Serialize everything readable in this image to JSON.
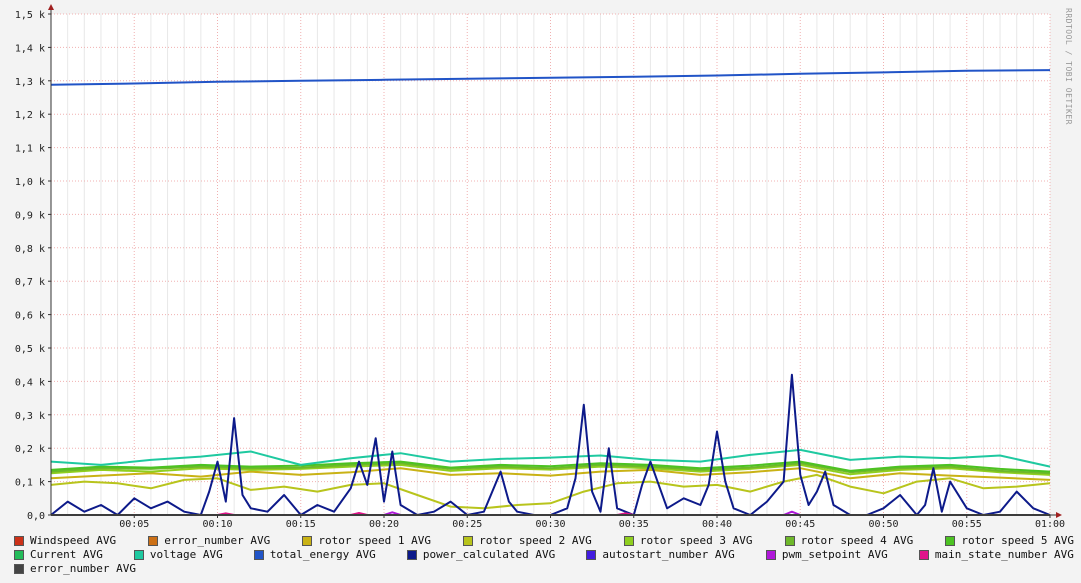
{
  "watermark": "RRDTOOL / TOBI OETIKER",
  "chart_data": {
    "type": "line",
    "title": "",
    "xlabel": "",
    "ylabel": "",
    "ylim": [
      0,
      1500
    ],
    "y_ticks": [
      0,
      100,
      200,
      300,
      400,
      500,
      600,
      700,
      800,
      900,
      1000,
      1100,
      1200,
      1300,
      1400,
      1500
    ],
    "y_tick_labels": [
      "0,0",
      "0,1 k",
      "0,2 k",
      "0,3 k",
      "0,4 k",
      "0,5 k",
      "0,6 k",
      "0,7 k",
      "0,8 k",
      "0,9 k",
      "1,0 k",
      "1,1 k",
      "1,2 k",
      "1,3 k",
      "1,4 k",
      "1,5 k"
    ],
    "xlim": [
      0,
      60
    ],
    "x_ticks": [
      5,
      10,
      15,
      20,
      25,
      30,
      35,
      40,
      45,
      50,
      55,
      60
    ],
    "x_tick_labels": [
      "00:05",
      "00:10",
      "00:15",
      "00:20",
      "00:25",
      "00:30",
      "00:35",
      "00:40",
      "00:45",
      "00:50",
      "00:55",
      "01:00"
    ],
    "grid": true,
    "legend_position": "bottom",
    "series": [
      {
        "name": "Windspeed AVG",
        "color": "#cc3118",
        "x": [
          0,
          60
        ],
        "y": [
          0,
          0
        ]
      },
      {
        "name": "error_number AVG",
        "color": "#cc7016",
        "x": [
          0,
          10,
          20,
          30,
          40,
          50,
          60
        ],
        "y": [
          0,
          0,
          0,
          0,
          0,
          0,
          0
        ]
      },
      {
        "name": "rotor speed 1 AVG",
        "color": "#c9b215",
        "x": [
          0,
          3,
          6,
          9,
          12,
          15,
          18,
          21,
          24,
          27,
          30,
          33,
          36,
          39,
          42,
          45,
          48,
          51,
          54,
          57,
          60
        ],
        "y": [
          110,
          118,
          125,
          115,
          130,
          120,
          128,
          140,
          120,
          125,
          118,
          130,
          135,
          120,
          128,
          140,
          110,
          125,
          118,
          112,
          105
        ]
      },
      {
        "name": "rotor speed 2 AVG",
        "color": "#b8c41c",
        "x": [
          0,
          2,
          4,
          6,
          8,
          10,
          12,
          14,
          16,
          18,
          20,
          22,
          24,
          26,
          28,
          30,
          32,
          34,
          36,
          38,
          40,
          42,
          44,
          46,
          48,
          50,
          52,
          54,
          56,
          58,
          60
        ],
        "y": [
          90,
          100,
          95,
          80,
          105,
          110,
          75,
          85,
          70,
          90,
          95,
          60,
          25,
          20,
          30,
          35,
          70,
          95,
          100,
          85,
          90,
          70,
          100,
          120,
          85,
          65,
          100,
          110,
          80,
          85,
          95
        ]
      },
      {
        "name": "rotor speed 3 AVG",
        "color": "#8fcf1f",
        "x": [
          0,
          3,
          6,
          9,
          12,
          15,
          18,
          21,
          24,
          27,
          30,
          33,
          36,
          39,
          42,
          45,
          48,
          51,
          54,
          57,
          60
        ],
        "y": [
          125,
          135,
          130,
          140,
          135,
          138,
          145,
          150,
          132,
          140,
          136,
          145,
          140,
          130,
          138,
          150,
          122,
          135,
          140,
          128,
          120
        ]
      },
      {
        "name": "rotor speed 4 AVG",
        "color": "#6eb82a",
        "x": [
          0,
          3,
          6,
          9,
          12,
          15,
          18,
          21,
          24,
          27,
          30,
          33,
          36,
          39,
          42,
          45,
          48,
          51,
          54,
          57,
          60
        ],
        "y": [
          130,
          140,
          138,
          145,
          140,
          142,
          150,
          155,
          138,
          145,
          140,
          150,
          145,
          135,
          142,
          155,
          128,
          140,
          145,
          132,
          125
        ]
      },
      {
        "name": "rotor speed 5 AVG",
        "color": "#4cc222",
        "x": [
          0,
          3,
          6,
          9,
          12,
          15,
          18,
          21,
          24,
          27,
          30,
          33,
          36,
          39,
          42,
          45,
          48,
          51,
          54,
          57,
          60
        ],
        "y": [
          135,
          145,
          142,
          150,
          145,
          148,
          155,
          160,
          142,
          150,
          146,
          155,
          150,
          140,
          148,
          160,
          132,
          145,
          150,
          138,
          130
        ]
      },
      {
        "name": "Current AVG",
        "color": "#24bc5a",
        "x": [
          0,
          60
        ],
        "y": [
          0,
          0
        ]
      },
      {
        "name": "voltage AVG",
        "color": "#1ec9a0",
        "x": [
          0,
          3,
          6,
          9,
          12,
          15,
          18,
          21,
          24,
          27,
          30,
          33,
          36,
          39,
          42,
          45,
          48,
          51,
          54,
          57,
          60
        ],
        "y": [
          160,
          150,
          165,
          175,
          190,
          150,
          170,
          185,
          160,
          168,
          172,
          178,
          165,
          160,
          180,
          195,
          165,
          175,
          170,
          178,
          145
        ]
      },
      {
        "name": "total_energy AVG",
        "color": "#2154c7",
        "x": [
          0,
          5,
          10,
          15,
          20,
          25,
          30,
          35,
          40,
          45,
          50,
          55,
          60
        ],
        "y": [
          1288,
          1292,
          1297,
          1300,
          1303,
          1306,
          1309,
          1312,
          1316,
          1321,
          1325,
          1330,
          1332
        ]
      },
      {
        "name": "power_calculated AVG",
        "color": "#0d1a8a",
        "x": [
          0,
          1,
          2,
          3,
          4,
          5,
          6,
          7,
          8,
          9,
          9.5,
          10,
          10.5,
          11,
          11.5,
          12,
          13,
          14,
          15,
          16,
          17,
          18,
          18.5,
          19,
          19.5,
          20,
          20.5,
          21,
          22,
          23,
          24,
          25,
          26,
          27,
          27.5,
          28,
          29,
          30,
          31,
          31.5,
          32,
          32.5,
          33,
          33.5,
          34,
          35,
          35.5,
          36,
          37,
          38,
          39,
          39.5,
          40,
          40.5,
          41,
          42,
          43,
          44,
          44.5,
          45,
          45.5,
          46,
          46.5,
          47,
          48,
          49,
          50,
          51,
          52,
          52.5,
          53,
          53.5,
          54,
          55,
          56,
          57,
          58,
          59,
          60
        ],
        "y": [
          0,
          40,
          10,
          30,
          0,
          50,
          20,
          40,
          10,
          0,
          70,
          160,
          40,
          290,
          60,
          20,
          10,
          60,
          0,
          30,
          10,
          80,
          160,
          90,
          230,
          40,
          190,
          30,
          0,
          10,
          40,
          0,
          10,
          130,
          40,
          10,
          0,
          0,
          20,
          110,
          330,
          70,
          10,
          200,
          20,
          0,
          90,
          160,
          20,
          50,
          30,
          90,
          250,
          100,
          20,
          0,
          40,
          100,
          420,
          120,
          30,
          70,
          130,
          30,
          0,
          0,
          20,
          60,
          0,
          30,
          140,
          10,
          100,
          20,
          0,
          10,
          70,
          20,
          0
        ]
      },
      {
        "name": "autostart_number AVG",
        "color": "#431de0",
        "x": [
          0,
          60
        ],
        "y": [
          0,
          0
        ]
      },
      {
        "name": "pwm_setpoint AVG",
        "color": "#b018d9",
        "x": [
          0,
          20,
          20.5,
          21,
          30,
          44,
          44.5,
          45,
          60
        ],
        "y": [
          0,
          0,
          8,
          0,
          0,
          0,
          10,
          0,
          0
        ]
      },
      {
        "name": "main_state_number AVG",
        "color": "#e0148b",
        "x": [
          0,
          10,
          10.5,
          11,
          18,
          18.5,
          19,
          34,
          34.5,
          35,
          60
        ],
        "y": [
          0,
          0,
          5,
          0,
          0,
          6,
          0,
          0,
          5,
          0,
          0
        ]
      },
      {
        "name": "error_number AVG",
        "color": "#444444",
        "x": [
          0,
          60
        ],
        "y": [
          0,
          0
        ]
      }
    ]
  }
}
